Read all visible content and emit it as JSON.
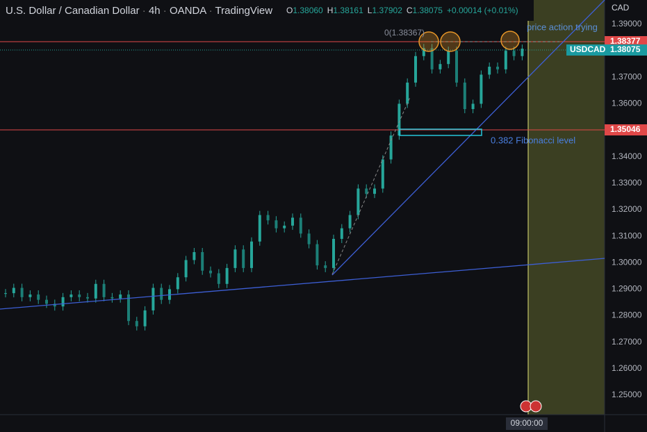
{
  "header": {
    "symbol": "U.S. Dollar / Canadian Dollar",
    "interval": "4h",
    "broker": "OANDA",
    "platform": "TradingView",
    "ohlc": [
      {
        "label": "O",
        "value": "1.38060"
      },
      {
        "label": "H",
        "value": "1.38161"
      },
      {
        "label": "L",
        "value": "1.37902"
      },
      {
        "label": "C",
        "value": "1.38075"
      }
    ],
    "change": "+0.00014 (+0.01%)"
  },
  "price_axis": {
    "currency": "CAD",
    "ticks": [
      "1.39000",
      "1.38000",
      "1.37000",
      "1.36000",
      "1.35000",
      "1.34000",
      "1.33000",
      "1.32000",
      "1.31000",
      "1.30000",
      "1.29000",
      "1.28000",
      "1.27000",
      "1.26000",
      "1.25000"
    ]
  },
  "badges": {
    "resistance": "1.38377",
    "symbol": "USDCAD",
    "last": "1.38075",
    "support": "1.35046"
  },
  "annotations": {
    "fib_zero": "0(1.38367)",
    "note": "price action trying",
    "fib_level": "0.382 Fibonacci level"
  },
  "time_label": "09:00:00",
  "closes": [
    1.2885,
    1.2905,
    1.287,
    1.288,
    1.286,
    1.2845,
    1.2835,
    1.287,
    1.288,
    1.287,
    1.2865,
    1.292,
    1.287,
    1.2865,
    1.288,
    1.278,
    1.276,
    1.282,
    1.2905,
    1.286,
    1.29,
    1.2945,
    1.301,
    1.304,
    1.297,
    1.296,
    1.292,
    1.298,
    1.305,
    1.298,
    1.308,
    1.318,
    1.316,
    1.313,
    1.314,
    1.317,
    1.311,
    1.307,
    1.299,
    1.298,
    1.309,
    1.313,
    1.318,
    1.328,
    1.326,
    1.328,
    1.339,
    1.348,
    1.36,
    1.368,
    1.378,
    1.381,
    1.373,
    1.375,
    1.38,
    1.368,
    1.358,
    1.36,
    1.371,
    1.374,
    1.373,
    1.38,
    1.378,
    1.3808
  ]
}
